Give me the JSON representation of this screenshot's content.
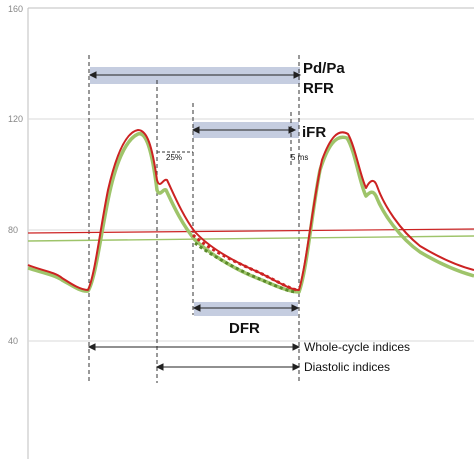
{
  "chart_data": {
    "type": "line",
    "ylim": [
      0,
      160
    ],
    "yticks": [
      "160",
      "120",
      "80",
      "40"
    ],
    "grid": true,
    "colors": {
      "pressure_pa": "#cc2222",
      "pressure_pd": "#9ec46a",
      "band": "#c5cde0",
      "grid": "#d8d8d8"
    },
    "annotations": {
      "pdpa": "Pd/Pa",
      "rfr": "RFR",
      "ifr": "iFR",
      "dfr": "DFR",
      "pct25": "25%",
      "ms5": "5 ms",
      "whole_cycle": "Whole-cycle indices",
      "diastolic": "Diastolic indices"
    }
  }
}
